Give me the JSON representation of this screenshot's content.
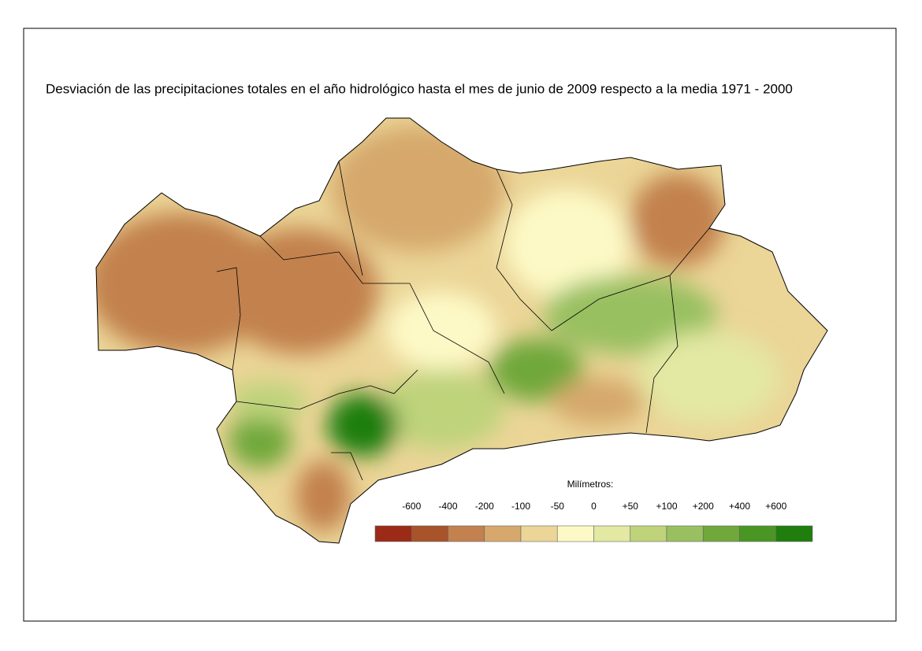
{
  "header": {
    "title": "Desviación de las precipitaciones totales en el año hidrológico hasta el mes de junio de 2009 respecto a la media 1971 - 2000"
  },
  "legend": {
    "title": "Milímetros:",
    "labels": [
      "-600",
      "-400",
      "-200",
      "-100",
      "-50",
      "0",
      "+50",
      "+100",
      "+200",
      "+400",
      "+600"
    ],
    "colors": [
      "#9b2a17",
      "#a8532a",
      "#c2814e",
      "#d6a86c",
      "#ebd597",
      "#fdf9c6",
      "#e3e8a2",
      "#bed37a",
      "#98c060",
      "#70a83b",
      "#4a9625",
      "#1f7e0e"
    ]
  }
}
